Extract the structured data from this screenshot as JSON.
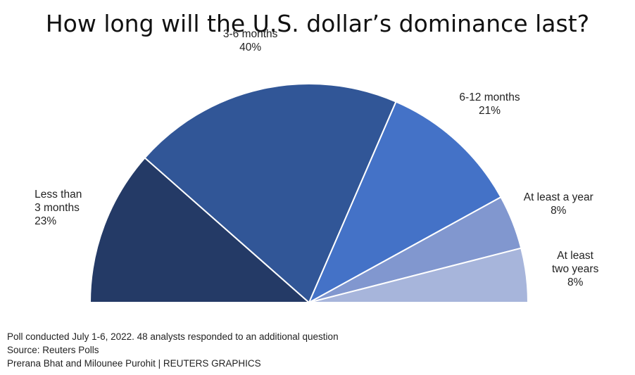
{
  "chart_data": {
    "type": "pie",
    "variant": "semicircle",
    "title": "How long will the U.S. dollar’s dominance last?",
    "categories": [
      "Less than 3 months",
      "3-6 months",
      "6-12 months",
      "At least a year",
      "At least two years"
    ],
    "values": [
      23,
      40,
      21,
      8,
      8
    ],
    "labels": [
      {
        "lines": [
          "Less than",
          "3 months"
        ],
        "pct": "23%",
        "align": "left"
      },
      {
        "lines": [
          "3-6 months"
        ],
        "pct": "40%",
        "align": "center"
      },
      {
        "lines": [
          "6-12 months"
        ],
        "pct": "21%",
        "align": "center"
      },
      {
        "lines": [
          "At least a year"
        ],
        "pct": "8%",
        "align": "center"
      },
      {
        "lines": [
          "At least",
          "two years"
        ],
        "pct": "8%",
        "align": "center"
      }
    ],
    "colors": [
      "#243a66",
      "#315697",
      "#4472c7",
      "#8197cf",
      "#a7b5db"
    ]
  },
  "footer": {
    "line1": "Poll conducted July 1-6, 2022. 48 analysts responded to an additional question",
    "line2": "Source: Reuters Polls",
    "line3": "Prerana Bhat and Milounee Purohit | REUTERS GRAPHICS"
  }
}
